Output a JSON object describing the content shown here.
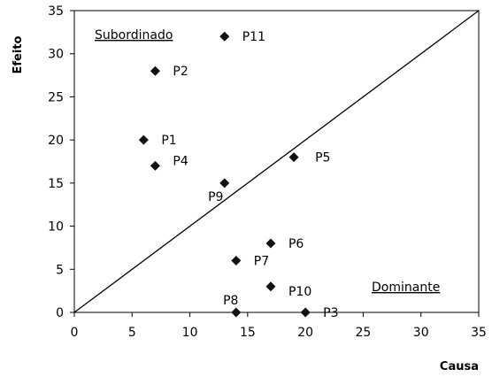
{
  "chart_data": {
    "type": "scatter",
    "xlabel": "Causa",
    "ylabel": "Efeito",
    "xlim": [
      0,
      35
    ],
    "ylim": [
      0,
      35
    ],
    "xticks": [
      "0",
      "5",
      "10",
      "15",
      "20",
      "25",
      "30",
      "35"
    ],
    "yticks": [
      "0",
      "5",
      "10",
      "15",
      "20",
      "25",
      "30",
      "35"
    ],
    "grid": false,
    "diagonal_line": [
      [
        0,
        0
      ],
      [
        35,
        35
      ]
    ],
    "points": [
      {
        "label": "P1",
        "x": 6,
        "y": 20
      },
      {
        "label": "P2",
        "x": 7,
        "y": 28
      },
      {
        "label": "P3",
        "x": 20,
        "y": 0
      },
      {
        "label": "P4",
        "x": 7,
        "y": 17
      },
      {
        "label": "P5",
        "x": 19,
        "y": 18
      },
      {
        "label": "P6",
        "x": 17,
        "y": 8
      },
      {
        "label": "P7",
        "x": 14,
        "y": 6
      },
      {
        "label": "P8",
        "x": 14,
        "y": 0
      },
      {
        "label": "P9",
        "x": 13,
        "y": 15
      },
      {
        "label": "P10",
        "x": 17,
        "y": 3
      },
      {
        "label": "P11",
        "x": 13,
        "y": 32
      }
    ],
    "annotations": {
      "top_left": "Subordinado",
      "bottom_right": "Dominante"
    },
    "marker": "diamond",
    "marker_color": "#111111"
  }
}
